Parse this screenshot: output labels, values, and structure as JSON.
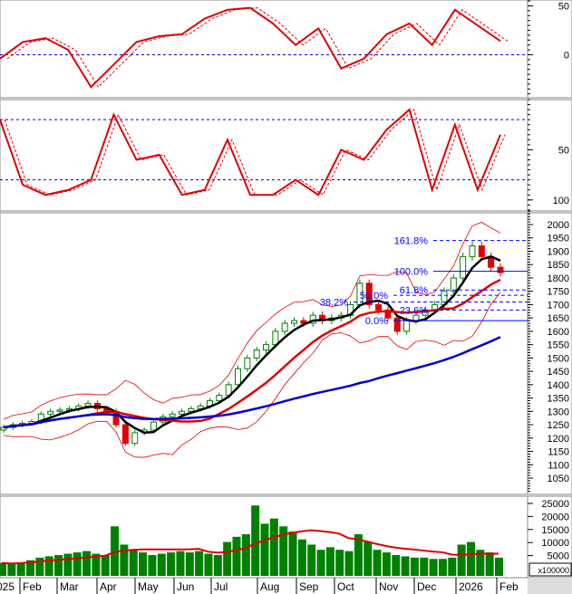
{
  "chart_data": [
    {
      "type": "line",
      "panel": "oscillator",
      "yticks": [
        0,
        50
      ],
      "reference_lines": [
        0
      ],
      "values": [
        -4,
        13,
        17,
        5,
        -33,
        -10,
        13,
        19,
        21,
        37,
        46,
        48,
        32,
        10,
        27,
        -14,
        -4,
        21,
        32,
        10,
        46,
        30,
        14
      ],
      "colors": {
        "line": "#e00000",
        "signal": "#e00000",
        "ref": "#0000cc"
      }
    },
    {
      "type": "line",
      "panel": "stochastic",
      "yticks": [
        50,
        100
      ],
      "reference_lines": [
        80,
        20
      ],
      "values": [
        20,
        85,
        95,
        90,
        80,
        15,
        60,
        55,
        95,
        90,
        40,
        95,
        95,
        80,
        95,
        50,
        60,
        30,
        10,
        90,
        25,
        90,
        35
      ],
      "colors": {
        "line": "#e00000",
        "ref": "#0000cc"
      }
    },
    {
      "type": "candlestick",
      "panel": "price",
      "ylim": [
        1000,
        2050
      ],
      "yticks": [
        1050,
        1100,
        1150,
        1200,
        1250,
        1300,
        1350,
        1400,
        1450,
        1500,
        1550,
        1600,
        1650,
        1700,
        1750,
        1800,
        1850,
        1900,
        1950,
        2000
      ],
      "close": [
        1240,
        1250,
        1255,
        1262,
        1290,
        1300,
        1305,
        1310,
        1320,
        1330,
        1310,
        1300,
        1250,
        1180,
        1220,
        1230,
        1260,
        1280,
        1290,
        1300,
        1310,
        1320,
        1340,
        1360,
        1400,
        1460,
        1500,
        1530,
        1550,
        1600,
        1630,
        1640,
        1630,
        1660,
        1640,
        1650,
        1660,
        1700,
        1780,
        1700,
        1680,
        1650,
        1600,
        1640,
        1660,
        1680,
        1700,
        1750,
        1800,
        1880,
        1920,
        1880,
        1840,
        1820
      ],
      "moving_averages": [
        {
          "window": 4,
          "color": "#000000"
        },
        {
          "window": 10,
          "color": "#e00000"
        },
        {
          "window": 40,
          "color": "#0000cc"
        }
      ],
      "fibonacci": [
        {
          "label": "161.8%",
          "value": 1940
        },
        {
          "label": "100.0%",
          "value": 1825
        },
        {
          "label": "61.8%",
          "value": 1755
        },
        {
          "label": "50.0%",
          "value": 1735
        },
        {
          "label": "38.2%",
          "value": 1710
        },
        {
          "label": "23.6%",
          "value": 1680
        },
        {
          "label": "0.0%",
          "value": 1640
        }
      ],
      "colors": {
        "up": "#008000",
        "down": "#e00000",
        "fib": "#0000ff"
      }
    },
    {
      "type": "bar",
      "panel": "volume",
      "unit": "x100000",
      "yticks": [
        5000,
        10000,
        15000,
        20000,
        25000
      ],
      "values": [
        5000,
        4500,
        5200,
        6000,
        7000,
        7500,
        8000,
        8500,
        9000,
        9500,
        8500,
        8000,
        19000,
        12000,
        10000,
        9000,
        8000,
        8500,
        9000,
        9500,
        9000,
        9500,
        8500,
        8000,
        13000,
        15000,
        16000,
        27000,
        20000,
        22000,
        19000,
        17000,
        14000,
        12000,
        10000,
        11000,
        10000,
        9500,
        16000,
        13000,
        10000,
        9000,
        8000,
        7500,
        7000,
        7000,
        6500,
        6500,
        7000,
        12000,
        13000,
        10000,
        9000,
        7000
      ],
      "ma_window": 10,
      "colors": {
        "bar": "#008000",
        "ma": "#e00000"
      }
    }
  ],
  "x_axis": {
    "labels": [
      "025",
      "Feb",
      "Mar",
      "Apr",
      "May",
      "Jun",
      "Jul",
      "Aug",
      "Sep",
      "Oct",
      "Nov",
      "Dec",
      "2026",
      "Feb"
    ]
  }
}
